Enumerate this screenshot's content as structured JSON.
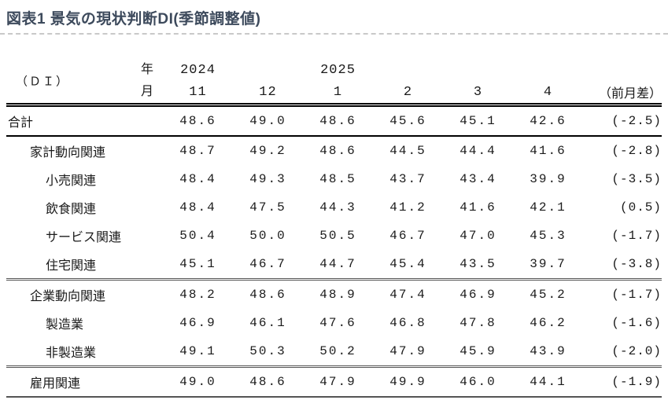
{
  "title": "図表1 景気の現状判断DI(季節調整値)",
  "table": {
    "corner_label": "（ＤＩ）",
    "year_label": "年",
    "month_label": "月",
    "year_row": [
      "2024",
      "",
      "2025",
      "",
      "",
      ""
    ],
    "months": [
      "11",
      "12",
      "1",
      "2",
      "3",
      "4"
    ],
    "diff_header": "（前月差）",
    "rows": [
      {
        "label": "合計",
        "indent": 0,
        "values": [
          "48.6",
          "49.0",
          "48.6",
          "45.6",
          "45.1",
          "42.6"
        ],
        "diff": "(-2.5)",
        "rule_below": "thick"
      },
      {
        "label": "家計動向関連",
        "indent": 1,
        "values": [
          "48.7",
          "49.2",
          "48.6",
          "44.5",
          "44.4",
          "41.6"
        ],
        "diff": "(-2.8)",
        "rule_below": ""
      },
      {
        "label": "小売関連",
        "indent": 2,
        "values": [
          "48.4",
          "49.3",
          "48.5",
          "43.7",
          "43.4",
          "39.9"
        ],
        "diff": "(-3.5)",
        "rule_below": ""
      },
      {
        "label": "飲食関連",
        "indent": 2,
        "values": [
          "48.4",
          "47.5",
          "44.3",
          "41.2",
          "41.6",
          "42.1"
        ],
        "diff": "(0.5)",
        "rule_below": ""
      },
      {
        "label": "サービス関連",
        "indent": 2,
        "values": [
          "50.4",
          "50.0",
          "50.5",
          "46.7",
          "47.0",
          "45.3"
        ],
        "diff": "(-1.7)",
        "rule_below": ""
      },
      {
        "label": "住宅関連",
        "indent": 2,
        "values": [
          "45.1",
          "46.7",
          "44.7",
          "45.4",
          "43.5",
          "39.7"
        ],
        "diff": "(-3.8)",
        "rule_below": "double"
      },
      {
        "label": "企業動向関連",
        "indent": 1,
        "values": [
          "48.2",
          "48.6",
          "48.9",
          "47.4",
          "46.9",
          "45.2"
        ],
        "diff": "(-1.7)",
        "rule_below": ""
      },
      {
        "label": "製造業",
        "indent": 2,
        "values": [
          "46.9",
          "46.1",
          "47.6",
          "46.8",
          "47.8",
          "46.2"
        ],
        "diff": "(-1.6)",
        "rule_below": ""
      },
      {
        "label": "非製造業",
        "indent": 2,
        "values": [
          "49.1",
          "50.3",
          "50.2",
          "47.9",
          "45.9",
          "43.9"
        ],
        "diff": "(-2.0)",
        "rule_below": "double"
      },
      {
        "label": "雇用関連",
        "indent": 1,
        "values": [
          "49.0",
          "48.6",
          "47.9",
          "49.9",
          "46.0",
          "44.1"
        ],
        "diff": "(-1.9)",
        "rule_below": "thin"
      }
    ]
  }
}
